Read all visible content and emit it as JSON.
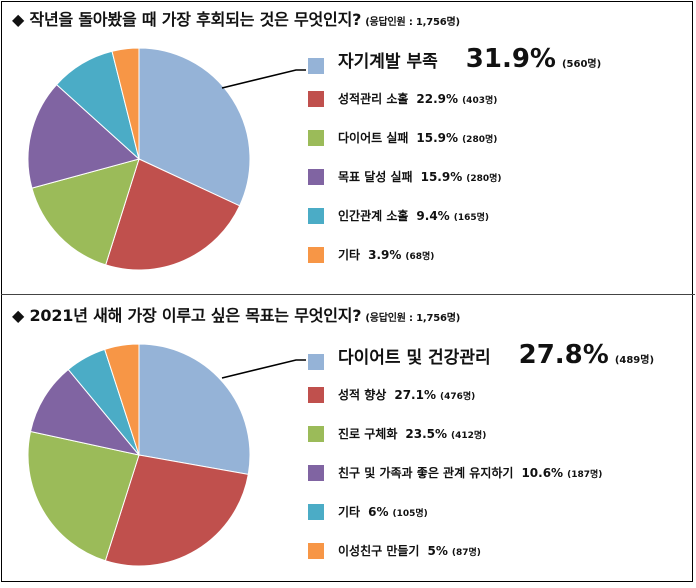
{
  "chart_data": [
    {
      "type": "pie",
      "title": "◆ 작년을 돌아봤을 때 가장 후회되는 것은 무엇인지?",
      "subtitle": "(응답인원 : 1,756명)",
      "categories": [
        "자기계발 부족",
        "성적관리 소홀",
        "다이어트 실패",
        "목표 달성 실패",
        "인간관계 소홀",
        "기타"
      ],
      "values": [
        31.9,
        22.9,
        15.9,
        15.9,
        9.4,
        3.9
      ],
      "value_labels": [
        "31.9%",
        "22.9%",
        "15.9%",
        "15.9%",
        "9.4%",
        "3.9%"
      ],
      "counts": [
        "(560명)",
        "(403명)",
        "(280명)",
        "(280명)",
        "(165명)",
        "(68명)"
      ],
      "colors": [
        "#95B3D7",
        "#C0504D",
        "#9BBB59",
        "#8064A2",
        "#4BACC6",
        "#F79646"
      ],
      "legend": "right"
    },
    {
      "type": "pie",
      "title": "◆ 2021년 새해 가장 이루고 싶은 목표는 무엇인지?",
      "subtitle": "(응답인원 : 1,756명)",
      "categories": [
        "다이어트 및 건강관리",
        "성적 향상",
        "진로 구체화",
        "친구 및 가족과 좋은 관계 유지하기",
        "기타",
        "이성친구 만들기"
      ],
      "values": [
        27.8,
        27.1,
        23.5,
        10.6,
        6,
        5
      ],
      "value_labels": [
        "27.8%",
        "27.1%",
        "23.5%",
        "10.6%",
        "6%",
        "5%"
      ],
      "counts": [
        "(489명)",
        "(476명)",
        "(412명)",
        "(187명)",
        "(105명)",
        "(87명)"
      ],
      "colors": [
        "#95B3D7",
        "#C0504D",
        "#9BBB59",
        "#8064A2",
        "#4BACC6",
        "#F79646"
      ],
      "legend": "right"
    }
  ]
}
